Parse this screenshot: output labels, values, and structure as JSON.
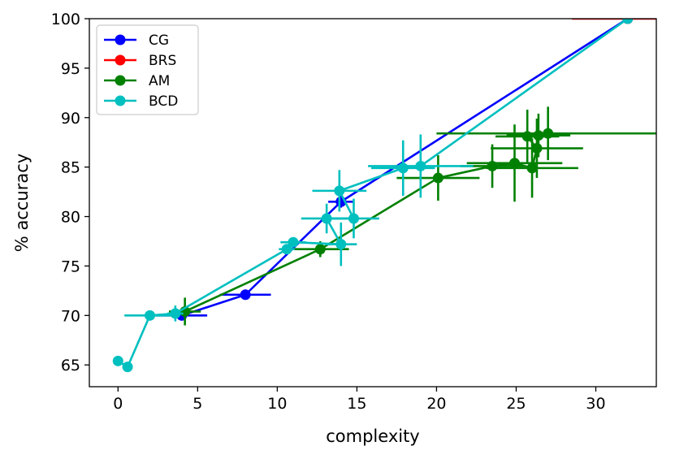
{
  "chart_data": {
    "type": "line",
    "title": "",
    "xlabel": "complexity",
    "ylabel": "% accuracy",
    "xlim": [
      -1.8,
      33.8
    ],
    "ylim": [
      62.8,
      100
    ],
    "xticks": [
      0,
      5,
      10,
      15,
      20,
      25,
      30
    ],
    "yticks": [
      65,
      70,
      75,
      80,
      85,
      90,
      95,
      100
    ],
    "legend_position": "top-left",
    "series": [
      {
        "name": "CG",
        "color": "#0000ff",
        "points": [
          {
            "x": 4.0,
            "y": 70.0,
            "xerr": 1.6,
            "yerr": 0.2
          },
          {
            "x": 8.0,
            "y": 72.1,
            "xerr": 1.6,
            "yerr": 0.2
          },
          {
            "x": 14.0,
            "y": 81.5,
            "xerr": 0.8,
            "yerr": 0.6
          },
          {
            "x": 32.0,
            "y": 100.0,
            "xerr": 0.0,
            "yerr": 0.0
          }
        ]
      },
      {
        "name": "BRS",
        "color": "#ff0000",
        "points": [
          {
            "x": 32.0,
            "y": 100.0,
            "xerr": 3.5,
            "yerr": 0.0
          }
        ]
      },
      {
        "name": "AM",
        "color": "#008000",
        "points": [
          {
            "x": 4.2,
            "y": 70.4,
            "xerr": 1.0,
            "yerr": 1.4
          },
          {
            "x": 12.7,
            "y": 76.7,
            "xerr": 1.8,
            "yerr": 0.8
          },
          {
            "x": 20.1,
            "y": 83.9,
            "xerr": 2.6,
            "yerr": 2.3
          },
          {
            "x": 23.5,
            "y": 85.1,
            "xerr": 2.0,
            "yerr": 2.2
          },
          {
            "x": 24.9,
            "y": 85.4,
            "xerr": 3.0,
            "yerr": 3.9
          },
          {
            "x": 26.0,
            "y": 84.9,
            "xerr": 2.9,
            "yerr": 3.0
          },
          {
            "x": 26.3,
            "y": 86.9,
            "xerr": 2.9,
            "yerr": 3.0
          },
          {
            "x": 25.7,
            "y": 88.1,
            "xerr": 2.0,
            "yerr": 2.7
          },
          {
            "x": 26.4,
            "y": 88.2,
            "xerr": 2.0,
            "yerr": 2.2
          },
          {
            "x": 27.0,
            "y": 88.4,
            "xerr": 7.0,
            "yerr": 2.7
          }
        ]
      },
      {
        "name": "BCD",
        "color": "#00bfbf",
        "points": [
          {
            "x": 0.0,
            "y": 65.4,
            "xerr": 0.0,
            "yerr": 0.0
          },
          {
            "x": 0.6,
            "y": 64.8,
            "xerr": 0.0,
            "yerr": 0.0
          },
          {
            "x": 2.0,
            "y": 70.0,
            "xerr": 1.6,
            "yerr": 0.3
          },
          {
            "x": 3.6,
            "y": 70.2,
            "xerr": 0.5,
            "yerr": 0.8
          },
          {
            "x": 10.6,
            "y": 76.7,
            "xerr": 0.5,
            "yerr": 0.4
          },
          {
            "x": 11.0,
            "y": 77.4,
            "xerr": 0.8,
            "yerr": 0.4
          },
          {
            "x": 14.0,
            "y": 77.2,
            "xerr": 1.0,
            "yerr": 2.2
          },
          {
            "x": 13.1,
            "y": 79.8,
            "xerr": 1.6,
            "yerr": 1.5
          },
          {
            "x": 14.8,
            "y": 79.8,
            "xerr": 1.6,
            "yerr": 2.0
          },
          {
            "x": 13.9,
            "y": 82.6,
            "xerr": 1.7,
            "yerr": 2.1
          },
          {
            "x": 17.9,
            "y": 84.9,
            "xerr": 2.0,
            "yerr": 2.8
          },
          {
            "x": 19.0,
            "y": 85.1,
            "xerr": 3.3,
            "yerr": 3.2
          },
          {
            "x": 32.0,
            "y": 100.0,
            "xerr": 0.0,
            "yerr": 0.0
          }
        ]
      }
    ]
  }
}
